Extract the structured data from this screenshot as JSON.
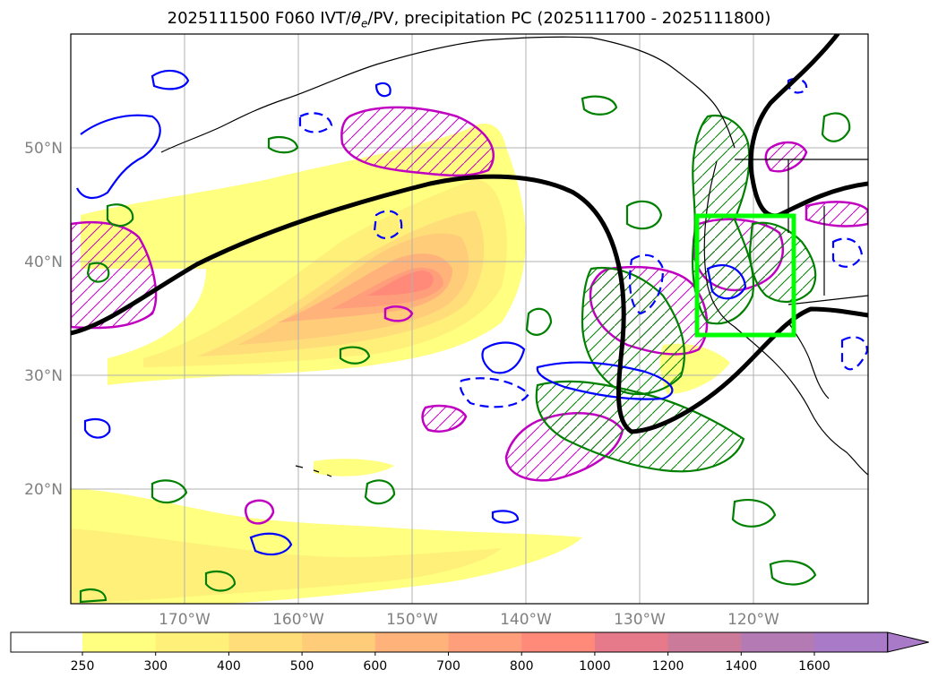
{
  "title": {
    "prefix": "2025111500 F060 IVT/",
    "theta": "θ",
    "theta_sub": "e",
    "suffix": "/PV, precipitation PC (2025111700 - 2025111800)"
  },
  "map": {
    "lon_range": [
      -180,
      -110
    ],
    "lat_range": [
      10,
      60
    ],
    "lat_labels": [
      {
        "lat": 50,
        "text": "50°N"
      },
      {
        "lat": 40,
        "text": "40°N"
      },
      {
        "lat": 30,
        "text": "30°N"
      },
      {
        "lat": 20,
        "text": "20°N"
      }
    ],
    "lon_labels": [
      {
        "lon": -170,
        "text": "170°W"
      },
      {
        "lon": -160,
        "text": "160°W"
      },
      {
        "lon": -150,
        "text": "150°W"
      },
      {
        "lon": -140,
        "text": "140°W"
      },
      {
        "lon": -130,
        "text": "130°W"
      },
      {
        "lon": -120,
        "text": "120°W"
      }
    ],
    "highlight_box": {
      "lon_min": -125,
      "lon_max": -116.5,
      "lat_min": 33.5,
      "lat_max": 44,
      "color": "#00ff00"
    }
  },
  "colorbar": {
    "levels": [
      "250",
      "300",
      "400",
      "500",
      "600",
      "700",
      "800",
      "1000",
      "1200",
      "1400",
      "1600"
    ],
    "colors": [
      "#ffffff",
      "#ffff80",
      "#fff07a",
      "#ffde7a",
      "#ffcc7a",
      "#ffb27a",
      "#ff9e7a",
      "#ff8a7a",
      "#e67a8a",
      "#cc7a9a",
      "#b37ab3",
      "#a87ac8"
    ]
  },
  "colors": {
    "ivt_contour": "#000000",
    "theta_e_positive": "#008000",
    "theta_e_negative": "#0000ff",
    "pv_contour": "#c000c0",
    "grid": "#b0b0b0",
    "land": "#000000"
  }
}
